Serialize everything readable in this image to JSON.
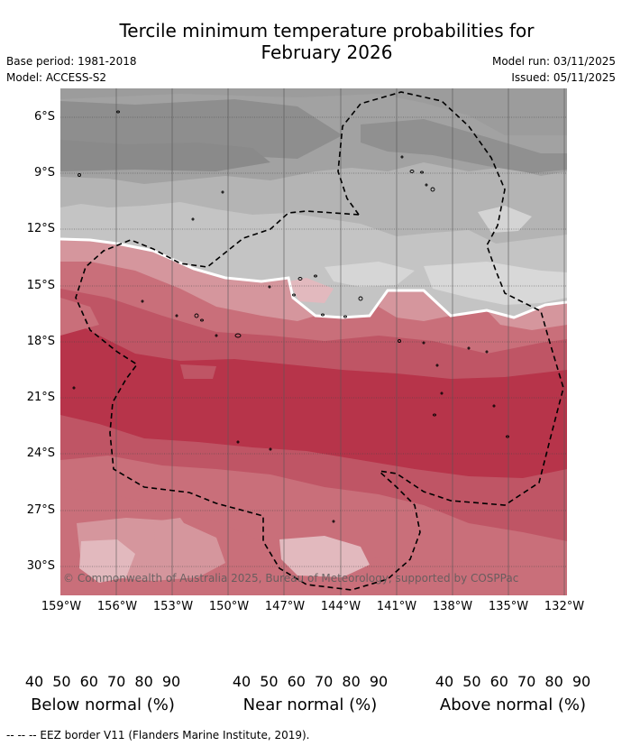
{
  "title": {
    "line1": "Tercile minimum temperature probabilities for",
    "line2": "February 2026"
  },
  "meta": {
    "base_period": "Base period: 1981-2018",
    "model": "Model: ACCESS-S2",
    "model_run": "Model run: 03/11/2025",
    "issued": "Issued: 05/11/2025"
  },
  "map": {
    "lat_labels": [
      "6°S",
      "9°S",
      "12°S",
      "15°S",
      "18°S",
      "21°S",
      "24°S",
      "27°S",
      "30°S"
    ],
    "lon_labels": [
      "159°W",
      "156°W",
      "153°W",
      "150°W",
      "147°W",
      "144°W",
      "141°W",
      "138°W",
      "135°W",
      "132°W"
    ],
    "copyright": "© Commonwealth of Australia 2025, Bureau of Meteorology, supported by COSPPac"
  },
  "colorbars": [
    {
      "name": "below",
      "title": "Below normal (%)",
      "ticks": [
        "40",
        "50",
        "60",
        "70",
        "80",
        "90"
      ],
      "colors": [
        "#bed3da",
        "#a6c7cf",
        "#89b8c4",
        "#6eabbb",
        "#4aa0b1"
      ]
    },
    {
      "name": "near",
      "title": "Near normal (%)",
      "ticks": [
        "40",
        "50",
        "60",
        "70",
        "80",
        "90"
      ],
      "colors": [
        "#e4e4e4",
        "#d4d4d4",
        "#c4c4c4",
        "#b4b4b4",
        "#a2a2a2"
      ]
    },
    {
      "name": "above",
      "title": "Above normal (%)",
      "ticks": [
        "40",
        "50",
        "60",
        "70",
        "80",
        "90"
      ],
      "colors": [
        "#e2b9be",
        "#d5969d",
        "#c96f7a",
        "#bf5565",
        "#b7344a"
      ]
    }
  ],
  "footer": "--  --  -- EEZ border V11 (Flanders Marine Institute, 2019)."
}
